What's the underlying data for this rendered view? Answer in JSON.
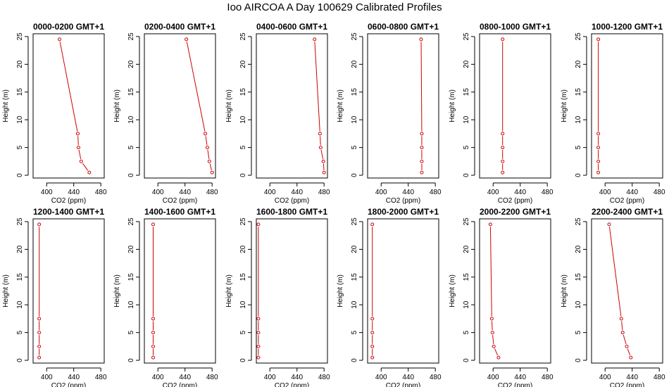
{
  "title": "Ioo AIRCOA A  Day 100629  Calibrated Profiles",
  "chart_data": [
    {
      "type": "line",
      "title": "0000-0200 GMT+1",
      "xlabel": "CO2 (ppm)",
      "ylabel": "Height (m)",
      "xlim": [
        380,
        485
      ],
      "ylim": [
        -0.5,
        25.5
      ],
      "xticks": [
        400,
        440,
        480
      ],
      "yticks": [
        0,
        5,
        10,
        15,
        20,
        25
      ],
      "color": "#cc0000",
      "series": [
        {
          "x": [
            419,
            446,
            447,
            451,
            463
          ],
          "y": [
            24.5,
            7.5,
            5,
            2.5,
            0.5
          ]
        }
      ]
    },
    {
      "type": "line",
      "title": "0200-0400 GMT+1",
      "xlabel": "CO2 (ppm)",
      "ylabel": "Height (m)",
      "xlim": [
        380,
        485
      ],
      "ylim": [
        -0.5,
        25.5
      ],
      "xticks": [
        400,
        440,
        480
      ],
      "yticks": [
        0,
        5,
        10,
        15,
        20,
        25
      ],
      "color": "#cc0000",
      "series": [
        {
          "x": [
            442,
            470,
            473,
            476,
            480
          ],
          "y": [
            24.5,
            7.5,
            5,
            2.5,
            0.5
          ]
        }
      ]
    },
    {
      "type": "line",
      "title": "0400-0600 GMT+1",
      "xlabel": "CO2 (ppm)",
      "ylabel": "Height (m)",
      "xlim": [
        380,
        485
      ],
      "ylim": [
        -0.5,
        25.5
      ],
      "xticks": [
        400,
        440,
        480
      ],
      "yticks": [
        0,
        5,
        10,
        15,
        20,
        25
      ],
      "color": "#cc0000",
      "series": [
        {
          "x": [
            466,
            474,
            475,
            479,
            480
          ],
          "y": [
            24.5,
            7.5,
            5,
            2.5,
            0.5
          ]
        }
      ]
    },
    {
      "type": "line",
      "title": "0600-0800 GMT+1",
      "xlabel": "CO2 (ppm)",
      "ylabel": "Height (m)",
      "xlim": [
        380,
        485
      ],
      "ylim": [
        -0.5,
        25.5
      ],
      "xticks": [
        400,
        440,
        480
      ],
      "yticks": [
        0,
        5,
        10,
        15,
        20,
        25
      ],
      "color": "#cc0000",
      "series": [
        {
          "x": [
            459,
            460,
            460,
            460,
            460
          ],
          "y": [
            24.5,
            7.5,
            5,
            2.5,
            0.5
          ]
        }
      ]
    },
    {
      "type": "line",
      "title": "0800-1000 GMT+1",
      "xlabel": "CO2 (ppm)",
      "ylabel": "Height (m)",
      "xlim": [
        380,
        485
      ],
      "ylim": [
        -0.5,
        25.5
      ],
      "xticks": [
        400,
        440,
        480
      ],
      "yticks": [
        0,
        5,
        10,
        15,
        20,
        25
      ],
      "color": "#cc0000",
      "series": [
        {
          "x": [
            414,
            414,
            414,
            414,
            414
          ],
          "y": [
            24.5,
            7.5,
            5,
            2.5,
            0.5
          ]
        }
      ]
    },
    {
      "type": "line",
      "title": "1000-1200 GMT+1",
      "xlabel": "CO2 (ppm)",
      "ylabel": "Height (m)",
      "xlim": [
        380,
        485
      ],
      "ylim": [
        -0.5,
        25.5
      ],
      "xticks": [
        400,
        440,
        480
      ],
      "yticks": [
        0,
        5,
        10,
        15,
        20,
        25
      ],
      "color": "#cc0000",
      "series": [
        {
          "x": [
            390,
            390,
            390,
            390,
            390
          ],
          "y": [
            24.5,
            7.5,
            5,
            2.5,
            0.5
          ]
        }
      ]
    },
    {
      "type": "line",
      "title": "1200-1400 GMT+1",
      "xlabel": "CO2 (ppm)",
      "ylabel": "Height (m)",
      "xlim": [
        380,
        485
      ],
      "ylim": [
        -0.5,
        25.5
      ],
      "xticks": [
        400,
        440,
        480
      ],
      "yticks": [
        0,
        5,
        10,
        15,
        20,
        25
      ],
      "color": "#cc0000",
      "series": [
        {
          "x": [
            389,
            389,
            389,
            389,
            389
          ],
          "y": [
            24.5,
            7.5,
            5,
            2.5,
            0.5
          ]
        }
      ]
    },
    {
      "type": "line",
      "title": "1400-1600 GMT+1",
      "xlabel": "CO2 (ppm)",
      "ylabel": "Height (m)",
      "xlim": [
        380,
        485
      ],
      "ylim": [
        -0.5,
        25.5
      ],
      "xticks": [
        400,
        440,
        480
      ],
      "yticks": [
        0,
        5,
        10,
        15,
        20,
        25
      ],
      "color": "#cc0000",
      "series": [
        {
          "x": [
            393,
            393,
            393,
            393,
            393
          ],
          "y": [
            24.5,
            7.5,
            5,
            2.5,
            0.5
          ]
        }
      ]
    },
    {
      "type": "line",
      "title": "1600-1800 GMT+1",
      "xlabel": "CO2 (ppm)",
      "ylabel": "Height (m)",
      "xlim": [
        380,
        485
      ],
      "ylim": [
        -0.5,
        25.5
      ],
      "xticks": [
        400,
        440,
        480
      ],
      "yticks": [
        0,
        5,
        10,
        15,
        20,
        25
      ],
      "color": "#cc0000",
      "series": [
        {
          "x": [
            383,
            383,
            383,
            383,
            383
          ],
          "y": [
            24.5,
            7.5,
            5,
            2.5,
            0.5
          ]
        }
      ]
    },
    {
      "type": "line",
      "title": "1800-2000 GMT+1",
      "xlabel": "CO2 (ppm)",
      "ylabel": "Height (m)",
      "xlim": [
        380,
        485
      ],
      "ylim": [
        -0.5,
        25.5
      ],
      "xticks": [
        400,
        440,
        480
      ],
      "yticks": [
        0,
        5,
        10,
        15,
        20,
        25
      ],
      "color": "#cc0000",
      "series": [
        {
          "x": [
            387,
            387,
            387,
            387,
            387
          ],
          "y": [
            24.5,
            7.5,
            5,
            2.5,
            0.5
          ]
        }
      ]
    },
    {
      "type": "line",
      "title": "2000-2200 GMT+1",
      "xlabel": "CO2 (ppm)",
      "ylabel": "Height (m)",
      "xlim": [
        380,
        485
      ],
      "ylim": [
        -0.5,
        25.5
      ],
      "xticks": [
        400,
        440,
        480
      ],
      "yticks": [
        0,
        5,
        10,
        15,
        20,
        25
      ],
      "color": "#cc0000",
      "series": [
        {
          "x": [
            396,
            398,
            399,
            401,
            408
          ],
          "y": [
            24.5,
            7.5,
            5,
            2.5,
            0.5
          ]
        }
      ]
    },
    {
      "type": "line",
      "title": "2200-2400 GMT+1",
      "xlabel": "CO2 (ppm)",
      "ylabel": "Height (m)",
      "xlim": [
        380,
        485
      ],
      "ylim": [
        -0.5,
        25.5
      ],
      "xticks": [
        400,
        440,
        480
      ],
      "yticks": [
        0,
        5,
        10,
        15,
        20,
        25
      ],
      "color": "#cc0000",
      "series": [
        {
          "x": [
            406,
            424,
            426,
            432,
            438
          ],
          "y": [
            24.5,
            7.5,
            5,
            2.5,
            0.5
          ]
        }
      ]
    }
  ]
}
